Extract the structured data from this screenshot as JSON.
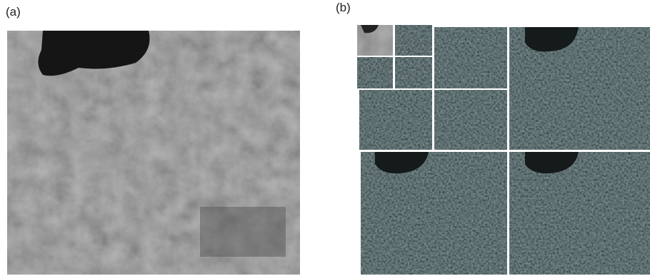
{
  "labels": {
    "a": "(a)",
    "b": "(b)"
  }
}
